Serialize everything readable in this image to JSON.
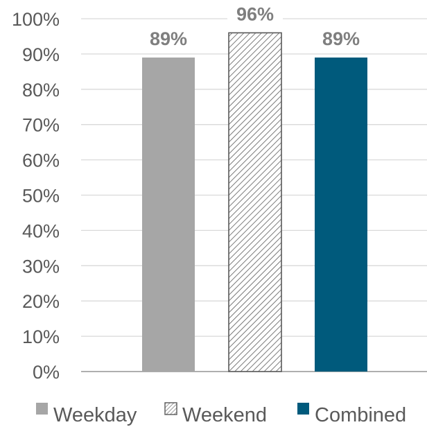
{
  "chart_data": {
    "type": "bar",
    "categories": [
      "Weekday",
      "Weekend",
      "Combined"
    ],
    "values": [
      89,
      96,
      89
    ],
    "data_labels": [
      "89%",
      "96%",
      "89%"
    ],
    "ylim": [
      0,
      100
    ],
    "yticks": [
      "0%",
      "10%",
      "20%",
      "30%",
      "40%",
      "50%",
      "60%",
      "70%",
      "80%",
      "90%",
      "100%"
    ],
    "grid": true,
    "legend_position": "bottom",
    "legend": [
      {
        "label": "Weekday",
        "style": "solid",
        "color": "#a6a6a6"
      },
      {
        "label": "Weekend",
        "style": "hatched",
        "color": "#595959"
      },
      {
        "label": "Combined",
        "style": "solid",
        "color": "#005a7c"
      }
    ],
    "colors": {
      "weekday": "#a6a6a6",
      "weekend_hatch": "#595959",
      "combined": "#005a7c",
      "grid": "#d9d9d9",
      "axis": "#7f7f7f"
    }
  }
}
